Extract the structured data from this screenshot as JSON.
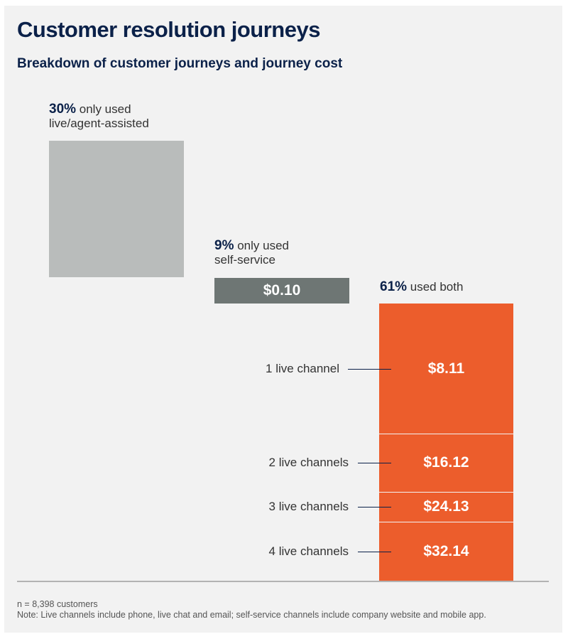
{
  "title": "Customer resolution journeys",
  "subtitle": "Breakdown of customer journeys and journey cost",
  "colors": {
    "live_only": "#b9bcbb",
    "self_service": "#6e7674",
    "both": "#ec5d2c",
    "title": "#0b2149"
  },
  "chart_data": {
    "type": "bar",
    "title": "Customer resolution journeys",
    "subtitle": "Breakdown of customer journeys and journey cost",
    "groups": [
      {
        "pct": "30%",
        "label": "only used live/agent-assisted",
        "label_line1": "only used",
        "label_line2": "live/agent-assisted",
        "share": 30,
        "cost": ""
      },
      {
        "pct": "9%",
        "label": "only used self-service",
        "label_line1": "only used",
        "label_line2": "self-service",
        "share": 9,
        "cost": "$0.10"
      },
      {
        "pct": "61%",
        "label": "used both",
        "label_line1": "used both",
        "share": 61,
        "segments": [
          {
            "name": "1 live channel",
            "cost": "$8.11",
            "cost_value": 8.11
          },
          {
            "name": "2 live channels",
            "cost": "$16.12",
            "cost_value": 16.12
          },
          {
            "name": "3 live channels",
            "cost": "$24.13",
            "cost_value": 24.13
          },
          {
            "name": "4 live channels",
            "cost": "$32.14",
            "cost_value": 32.14
          }
        ]
      }
    ],
    "segment_shares": [
      44.5,
      20,
      10,
      20.5
    ]
  },
  "footnotes": {
    "n": "n = 8,398 customers",
    "note": "Note: Live channels include phone, live chat and email; self-service channels include company website and mobile app."
  }
}
